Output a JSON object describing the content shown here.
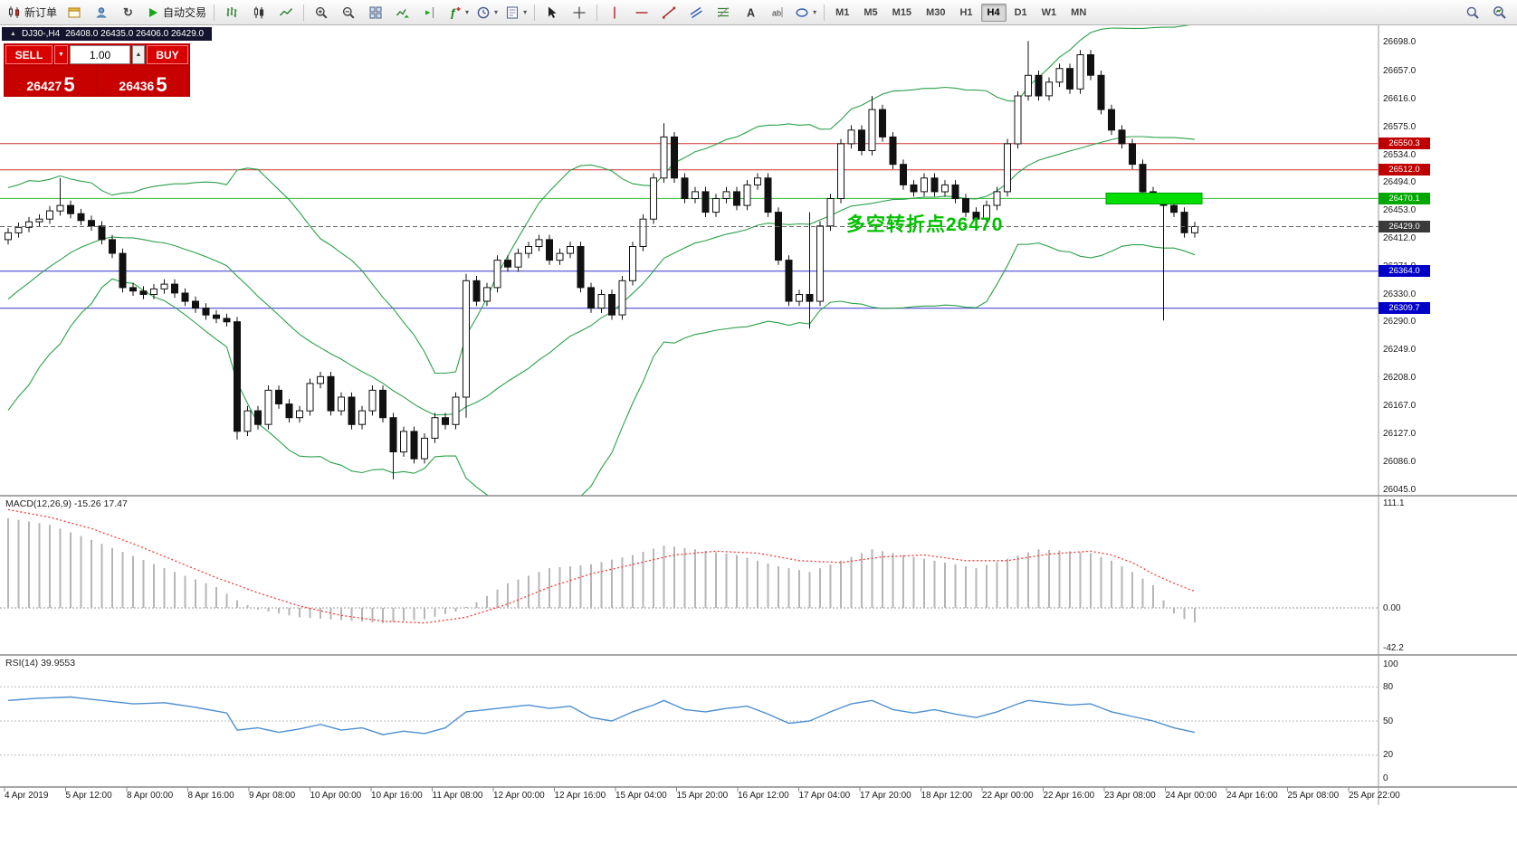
{
  "colors": {
    "panel_red": "#c00000",
    "button_red": "#d90000",
    "band_green": "#2ca04a",
    "hist_gray": "#b6b6b6",
    "signal_red": "#ff3838",
    "rsi_blue": "#4f8fd0",
    "highlight_green": "#00dd00",
    "annotation_green": "#00c000",
    "badge_dark": "#3a3a3a"
  },
  "toolbar": {
    "buttons": [
      {
        "type": "button",
        "name": "new-order",
        "icon": "new-order-icon",
        "label": "新订单"
      },
      {
        "type": "button",
        "name": "chart-window",
        "icon": "window-icon"
      },
      {
        "type": "button",
        "name": "profiles",
        "icon": "profile-icon"
      },
      {
        "type": "button",
        "name": "refresh",
        "icon": "refresh-icon"
      },
      {
        "type": "button",
        "name": "auto-trading",
        "icon": "play-icon",
        "label": "自动交易"
      },
      {
        "type": "sep"
      },
      {
        "type": "button",
        "name": "bar-chart-mode",
        "icon": "bars-icon"
      },
      {
        "type": "button",
        "name": "candlestick-mode",
        "icon": "candles-icon"
      },
      {
        "type": "button",
        "name": "line-chart-mode",
        "icon": "line-icon"
      },
      {
        "type": "sep"
      },
      {
        "type": "button",
        "name": "zoom-in",
        "icon": "zoom-in-icon"
      },
      {
        "type": "button",
        "name": "zoom-out",
        "icon": "zoom-out-icon"
      },
      {
        "type": "button",
        "name": "tile-windows",
        "icon": "tile-icon"
      },
      {
        "type": "button",
        "name": "auto-scroll",
        "icon": "autoscroll-icon"
      },
      {
        "type": "button",
        "name": "chart-shift",
        "icon": "shift-icon"
      },
      {
        "type": "button",
        "name": "indicators-list",
        "icon": "indicator-icon",
        "dropdown": true
      },
      {
        "type": "button",
        "name": "periods",
        "icon": "clock-icon",
        "dropdown": true
      },
      {
        "type": "button",
        "name": "templates",
        "icon": "template-icon",
        "dropdown": true
      },
      {
        "type": "sep"
      },
      {
        "type": "button",
        "name": "cursor-tool",
        "icon": "cursor-icon"
      },
      {
        "type": "button",
        "name": "crosshair-tool",
        "icon": "crosshair-icon"
      },
      {
        "type": "sep"
      },
      {
        "type": "button",
        "name": "vertical-line-tool",
        "icon": "vline-icon"
      },
      {
        "type": "button",
        "name": "horizontal-line-tool",
        "icon": "hline-icon"
      },
      {
        "type": "button",
        "name": "trendline-tool",
        "icon": "trendline-icon"
      },
      {
        "type": "button",
        "name": "channel-tool",
        "icon": "channel-icon"
      },
      {
        "type": "button",
        "name": "fibonacci-tool",
        "icon": "fibo-icon"
      },
      {
        "type": "button",
        "name": "text-tool",
        "icon": "text-icon"
      },
      {
        "type": "button",
        "name": "label-tool",
        "icon": "label-icon"
      },
      {
        "type": "button",
        "name": "shapes-tool",
        "icon": "shapes-icon",
        "dropdown": true
      },
      {
        "type": "sep"
      }
    ],
    "timeframes": [
      "M1",
      "M5",
      "M15",
      "M30",
      "H1",
      "H4",
      "D1",
      "W1",
      "MN"
    ],
    "active_timeframe": "H4",
    "right_buttons": [
      {
        "name": "symbol-search",
        "icon": "magnifier-icon"
      },
      {
        "name": "quick-search",
        "icon": "magnifier-chart-icon"
      }
    ]
  },
  "chart": {
    "tab": {
      "symbol": "DJ30-,H4",
      "ohlc": "26408.0 26435.0 26406.0 26429.0"
    },
    "one_click": {
      "sell_label": "SELL",
      "buy_label": "BUY",
      "volume": "1.00",
      "sell_price": "26427",
      "sell_fraction": "5",
      "buy_price": "26436",
      "buy_fraction": "5"
    },
    "annotation": "多空转折点26470",
    "levels": [
      {
        "label": "26550.3",
        "value": 26550.3,
        "line": "#cd3333",
        "badge": "#c00000"
      },
      {
        "label": "26512.0",
        "value": 26512.0,
        "line": "#cd3333",
        "badge": "#c00000"
      },
      {
        "label": "26470.1",
        "value": 26470.1,
        "line": "#2db82d",
        "badge": "#00a800"
      },
      {
        "label": "26364.0",
        "value": 26364.0,
        "line": "#3333cc",
        "badge": "#0000c8"
      },
      {
        "label": "26309.7",
        "value": 26309.7,
        "line": "#3333cc",
        "badge": "#0000c8"
      }
    ],
    "current_price": {
      "label": "26429.0",
      "value": 26429.0
    },
    "highlight_box": {
      "price_top": 26478,
      "price_bottom": 26462,
      "from_index": 106,
      "to_index": 114
    },
    "price_axis": [
      "26698.0",
      "26657.0",
      "26616.0",
      "26575.0",
      "26534.0",
      "26494.0",
      "26453.0",
      "26412.0",
      "26371.0",
      "26330.0",
      "26290.0",
      "26249.0",
      "26208.0",
      "26167.0",
      "26127.0",
      "26086.0",
      "26045.0"
    ],
    "time_axis": [
      "4 Apr 2019",
      "5 Apr 12:00",
      "8 Apr 00:00",
      "8 Apr 16:00",
      "9 Apr 08:00",
      "10 Apr 00:00",
      "10 Apr 16:00",
      "11 Apr 08:00",
      "12 Apr 00:00",
      "12 Apr 16:00",
      "15 Apr 04:00",
      "15 Apr 20:00",
      "16 Apr 12:00",
      "17 Apr 04:00",
      "17 Apr 20:00",
      "18 Apr 12:00",
      "22 Apr 00:00",
      "22 Apr 16:00",
      "23 Apr 08:00",
      "24 Apr 00:00",
      "24 Apr 16:00",
      "25 Apr 08:00",
      "25 Apr 22:00"
    ]
  },
  "chart_data": {
    "type": "candlestick",
    "symbol": "DJ30-",
    "period": "H4",
    "current_ohlc": {
      "open": 26408.0,
      "high": 26435.0,
      "low": 26406.0,
      "close": 26429.0
    },
    "price_range": [
      26045.0,
      26698.0
    ],
    "first_open": 26410,
    "closes": [
      26420,
      26428,
      26436,
      26440,
      26452,
      26460,
      26448,
      26438,
      26430,
      26410,
      26390,
      26340,
      26335,
      26330,
      26338,
      26345,
      26332,
      26320,
      26310,
      26300,
      26295,
      26290,
      26130,
      26160,
      26140,
      26190,
      26170,
      26150,
      26160,
      26200,
      26210,
      26160,
      26180,
      26140,
      26160,
      26190,
      26150,
      26100,
      26130,
      26090,
      26120,
      26150,
      26140,
      26180,
      26350,
      26320,
      26340,
      26380,
      26370,
      26390,
      26400,
      26410,
      26380,
      26390,
      26400,
      26340,
      26310,
      26330,
      26300,
      26350,
      26400,
      26440,
      26500,
      26560,
      26500,
      26470,
      26480,
      26450,
      26470,
      26480,
      26460,
      26490,
      26500,
      26450,
      26380,
      26320,
      26330,
      26320,
      26430,
      26470,
      26550,
      26570,
      26540,
      26600,
      26560,
      26520,
      26490,
      26480,
      26500,
      26480,
      26490,
      26470,
      26450,
      26440,
      26460,
      26480,
      26550,
      26620,
      26650,
      26620,
      26640,
      26660,
      26630,
      26680,
      26650,
      26600,
      26570,
      26550,
      26520,
      26480,
      26470,
      26460,
      26450,
      26420,
      26429
    ],
    "history_closes": [
      26150,
      26180,
      26210,
      26190,
      26230,
      26260,
      26240,
      26280,
      26310,
      26290,
      26330,
      26360,
      26340,
      26380,
      26400,
      26380,
      26410,
      26430,
      26410,
      26415
    ],
    "wick_overrides": {
      "5": [
        26500,
        null
      ],
      "22": [
        null,
        26118
      ],
      "37": [
        null,
        26060
      ],
      "44": [
        26360,
        26150
      ],
      "63": [
        26580,
        null
      ],
      "77": [
        26450,
        26280
      ],
      "83": [
        26620,
        null
      ],
      "98": [
        26700,
        null
      ],
      "111": [
        null,
        26292
      ]
    },
    "indicators": {
      "bollinger": {
        "period": 20,
        "deviation": 2
      },
      "macd": {
        "label": "MACD(12,26,9) -15.26 17.47",
        "macd_value": -15.26,
        "signal_value": 17.47,
        "scale_max": 111.1,
        "scale_min": -42.2,
        "axis": [
          {
            "label": "111.1",
            "value": 111.1
          },
          {
            "label": "0.00",
            "value": 0
          },
          {
            "label": "-42.2",
            "value": -42.2
          }
        ],
        "hist_anchors": [
          [
            0,
            95
          ],
          [
            4,
            88
          ],
          [
            8,
            72
          ],
          [
            12,
            55
          ],
          [
            16,
            38
          ],
          [
            20,
            22
          ],
          [
            22,
            8
          ],
          [
            24,
            -2
          ],
          [
            28,
            -10
          ],
          [
            32,
            -13
          ],
          [
            36,
            -16
          ],
          [
            40,
            -12
          ],
          [
            43,
            -4
          ],
          [
            45,
            6
          ],
          [
            48,
            26
          ],
          [
            52,
            42
          ],
          [
            56,
            46
          ],
          [
            60,
            56
          ],
          [
            63,
            66
          ],
          [
            66,
            62
          ],
          [
            70,
            56
          ],
          [
            74,
            44
          ],
          [
            77,
            38
          ],
          [
            80,
            50
          ],
          [
            83,
            62
          ],
          [
            86,
            56
          ],
          [
            90,
            48
          ],
          [
            93,
            42
          ],
          [
            96,
            52
          ],
          [
            99,
            62
          ],
          [
            102,
            60
          ],
          [
            104,
            58
          ],
          [
            106,
            50
          ],
          [
            108,
            38
          ],
          [
            110,
            24
          ],
          [
            111,
            8
          ],
          [
            112,
            -6
          ],
          [
            113,
            -12
          ],
          [
            114,
            -15.3
          ]
        ],
        "signal_anchors": [
          [
            0,
            104
          ],
          [
            4,
            96
          ],
          [
            8,
            84
          ],
          [
            12,
            68
          ],
          [
            16,
            50
          ],
          [
            20,
            32
          ],
          [
            24,
            16
          ],
          [
            28,
            2
          ],
          [
            32,
            -8
          ],
          [
            36,
            -14
          ],
          [
            40,
            -16
          ],
          [
            44,
            -10
          ],
          [
            48,
            4
          ],
          [
            52,
            22
          ],
          [
            56,
            36
          ],
          [
            60,
            46
          ],
          [
            64,
            56
          ],
          [
            68,
            60
          ],
          [
            72,
            58
          ],
          [
            76,
            50
          ],
          [
            80,
            48
          ],
          [
            84,
            54
          ],
          [
            88,
            56
          ],
          [
            92,
            50
          ],
          [
            96,
            50
          ],
          [
            100,
            57
          ],
          [
            104,
            60
          ],
          [
            106,
            56
          ],
          [
            108,
            48
          ],
          [
            110,
            36
          ],
          [
            112,
            26
          ],
          [
            114,
            17.5
          ]
        ]
      },
      "rsi": {
        "label": "RSI(14) 39.9553",
        "value": 39.9553,
        "levels": [
          80,
          50,
          20
        ],
        "axis": [
          {
            "label": "100",
            "value": 100
          },
          {
            "label": "80",
            "value": 80
          },
          {
            "label": "50",
            "value": 50
          },
          {
            "label": "20",
            "value": 20
          },
          {
            "label": "0",
            "value": 0
          }
        ],
        "anchors": [
          [
            0,
            68
          ],
          [
            3,
            70
          ],
          [
            6,
            71
          ],
          [
            9,
            68
          ],
          [
            12,
            65
          ],
          [
            15,
            66
          ],
          [
            18,
            62
          ],
          [
            21,
            57
          ],
          [
            22,
            42
          ],
          [
            24,
            44
          ],
          [
            26,
            40
          ],
          [
            28,
            43
          ],
          [
            30,
            47
          ],
          [
            32,
            42
          ],
          [
            34,
            44
          ],
          [
            36,
            38
          ],
          [
            38,
            41
          ],
          [
            40,
            39
          ],
          [
            42,
            44
          ],
          [
            44,
            58
          ],
          [
            46,
            60
          ],
          [
            48,
            62
          ],
          [
            50,
            64
          ],
          [
            52,
            61
          ],
          [
            54,
            63
          ],
          [
            56,
            53
          ],
          [
            58,
            50
          ],
          [
            60,
            58
          ],
          [
            62,
            64
          ],
          [
            63,
            68
          ],
          [
            65,
            60
          ],
          [
            67,
            58
          ],
          [
            69,
            61
          ],
          [
            71,
            63
          ],
          [
            73,
            56
          ],
          [
            75,
            48
          ],
          [
            77,
            50
          ],
          [
            79,
            58
          ],
          [
            81,
            65
          ],
          [
            83,
            68
          ],
          [
            85,
            60
          ],
          [
            87,
            57
          ],
          [
            89,
            60
          ],
          [
            91,
            56
          ],
          [
            93,
            53
          ],
          [
            95,
            58
          ],
          [
            97,
            65
          ],
          [
            98,
            68
          ],
          [
            100,
            66
          ],
          [
            102,
            64
          ],
          [
            104,
            65
          ],
          [
            106,
            58
          ],
          [
            108,
            54
          ],
          [
            110,
            50
          ],
          [
            112,
            44
          ],
          [
            114,
            40
          ]
        ]
      }
    }
  }
}
